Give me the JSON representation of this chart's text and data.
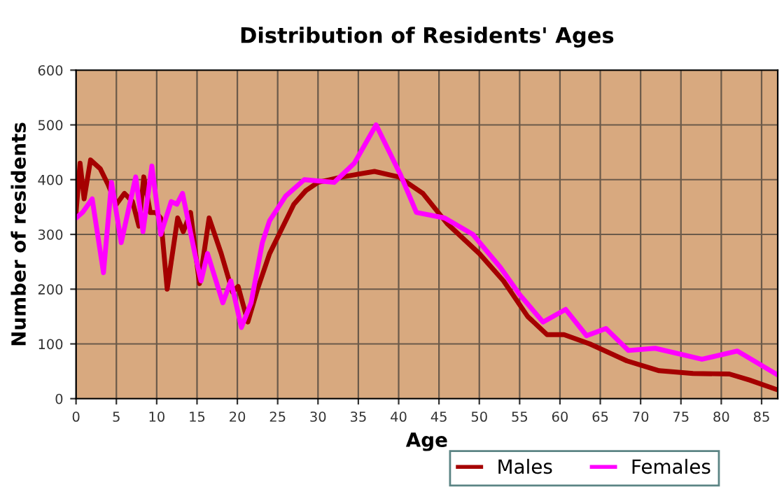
{
  "chart_data": {
    "type": "line",
    "title": "Distribution of Residents' Ages",
    "xlabel": "Age",
    "ylabel": "Number of residents",
    "xlim": [
      0,
      87
    ],
    "xticks": [
      0,
      5,
      10,
      15,
      20,
      25,
      30,
      35,
      40,
      45,
      50,
      55,
      60,
      65,
      70,
      75,
      80,
      85
    ],
    "ylim": [
      0,
      600
    ],
    "yticks": [
      0,
      100,
      200,
      300,
      400,
      500,
      600
    ],
    "grid": true,
    "legend": "bottom right",
    "series": [
      {
        "name": "Males",
        "color": "#a50000",
        "x": [
          0,
          0.5,
          1,
          1.8,
          3,
          4,
          5,
          6,
          7,
          7.8,
          8.4,
          9.2,
          9.9,
          10.5,
          11.3,
          12.6,
          13.3,
          14.2,
          15.3,
          16.5,
          18,
          19.4,
          20.1,
          21.3,
          22.5,
          24,
          25.5,
          27,
          28.5,
          30,
          33,
          37,
          40,
          43,
          46,
          50,
          53,
          56,
          58.4,
          60.5,
          63.7,
          68.3,
          72.3,
          76.5,
          81,
          83.5,
          86.8
        ],
        "values": [
          340,
          430,
          365,
          436,
          420,
          390,
          355,
          375,
          360,
          315,
          405,
          340,
          340,
          330,
          200,
          330,
          305,
          340,
          210,
          330,
          265,
          195,
          205,
          140,
          200,
          265,
          310,
          355,
          380,
          395,
          405,
          415,
          405,
          375,
          320,
          265,
          215,
          150,
          117,
          117,
          100,
          69,
          51,
          46,
          45,
          34,
          17
        ]
      },
      {
        "name": "Females",
        "color": "#ff00ff",
        "x": [
          0,
          0.8,
          2,
          3.4,
          4.4,
          5.6,
          7.4,
          8.3,
          9.4,
          10.5,
          11.8,
          12.5,
          13.2,
          14.8,
          15.5,
          16.3,
          18.2,
          19.2,
          20.5,
          21.7,
          23.1,
          24,
          26,
          28.3,
          32,
          34.5,
          37.2,
          40.2,
          42.2,
          45.7,
          49.2,
          52.6,
          55,
          57.9,
          60.7,
          63.3,
          65.7,
          68.5,
          71.8,
          77.6,
          82,
          86.8
        ],
        "values": [
          330,
          340,
          365,
          230,
          395,
          285,
          405,
          305,
          425,
          300,
          360,
          355,
          375,
          260,
          215,
          265,
          175,
          215,
          130,
          175,
          285,
          325,
          370,
          400,
          395,
          430,
          500,
          410,
          340,
          330,
          300,
          240,
          190,
          140,
          163,
          115,
          128,
          88,
          92,
          72,
          87,
          45
        ]
      }
    ]
  }
}
